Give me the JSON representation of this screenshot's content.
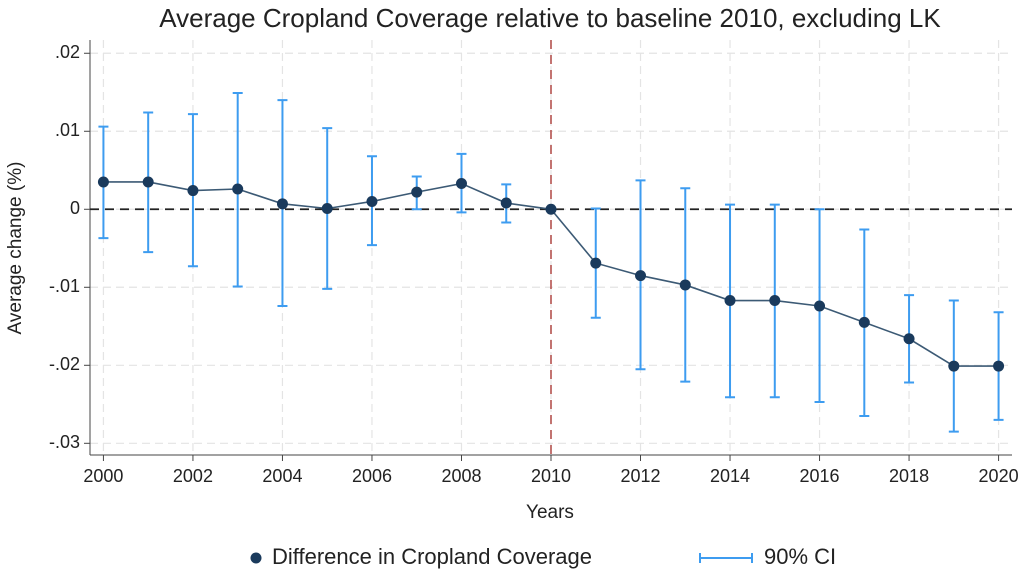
{
  "chart_data": {
    "type": "errorbar",
    "title": "Average Cropland Coverage relative to baseline 2010, excluding LK",
    "x_label": "Years",
    "y_label": "Average change (%)",
    "x": [
      2000,
      2001,
      2002,
      2003,
      2004,
      2005,
      2006,
      2007,
      2008,
      2009,
      2010,
      2011,
      2012,
      2013,
      2014,
      2015,
      2016,
      2017,
      2018,
      2019,
      2020
    ],
    "series": [
      {
        "name": "Difference in Cropland Coverage",
        "color": "#1a3a5c",
        "values": [
          0.0035,
          0.0035,
          0.0024,
          0.0026,
          0.0007,
          0.0001,
          0.001,
          0.0022,
          0.0033,
          0.0008,
          0,
          -0.0069,
          -0.0085,
          -0.0097,
          -0.0117,
          -0.0117,
          -0.0124,
          -0.0145,
          -0.0166,
          -0.0201,
          -0.0201
        ]
      },
      {
        "name": "90% CI",
        "color": "#3d9cf0",
        "lower": [
          -0.0037,
          -0.0055,
          -0.0073,
          -0.0099,
          -0.0124,
          -0.0102,
          -0.0046,
          0,
          -0.0004,
          -0.0017,
          null,
          -0.0139,
          -0.0205,
          -0.0221,
          -0.0241,
          -0.0241,
          -0.0247,
          -0.0265,
          -0.0222,
          -0.0285,
          -0.027
        ],
        "upper": [
          0.0106,
          0.0124,
          0.0122,
          0.0149,
          0.014,
          0.0104,
          0.0068,
          0.0042,
          0.0071,
          0.0032,
          null,
          0.0001,
          0.0037,
          0.0027,
          0.0006,
          0.0006,
          0,
          -0.0026,
          -0.011,
          -0.0117,
          -0.0132
        ]
      }
    ],
    "xlim": [
      1999.7,
      2020.3
    ],
    "ylim": [
      -0.0315,
      0.0217
    ],
    "xticks": [
      2000,
      2002,
      2004,
      2006,
      2008,
      2010,
      2012,
      2014,
      2016,
      2018,
      2020
    ],
    "yticks": [
      {
        "value": 0.02,
        "label": ".02"
      },
      {
        "value": 0.01,
        "label": ".01"
      },
      0,
      {
        "value": -0.01,
        "label": "-.01"
      },
      {
        "value": -0.02,
        "label": "-.02"
      },
      {
        "value": -0.03,
        "label": "-.03"
      }
    ],
    "hline": 0,
    "vline": 2010,
    "vline_color": "#b5524f",
    "grid": true,
    "legend_position": "bottom"
  }
}
